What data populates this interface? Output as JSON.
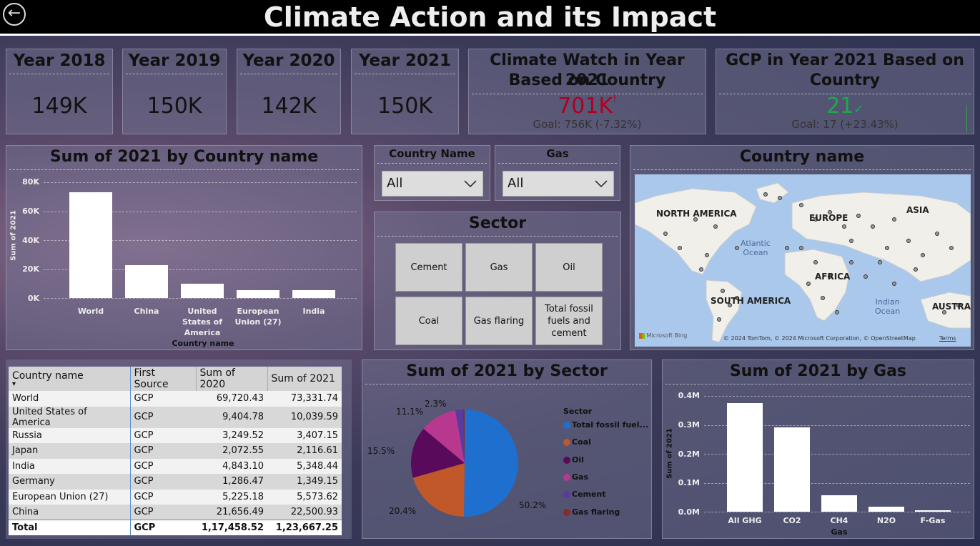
{
  "header": {
    "title": "Climate Action and its Impact",
    "back_icon": "arrow-left-icon"
  },
  "kpis": [
    {
      "label": "Year 2018",
      "value": "149K"
    },
    {
      "label": "Year 2019",
      "value": "150K"
    },
    {
      "label": "Year 2020",
      "value": "142K"
    },
    {
      "label": "Year 2021",
      "value": "150K"
    }
  ],
  "climate_watch": {
    "title_line1": "Climate Watch in Year 2021",
    "title_line2": "Based on Country",
    "value": "701K",
    "value_color": "#b00020",
    "status_icon": "!",
    "goal": "Goal: 756K (-7.32%)"
  },
  "gcp": {
    "title_line1": "GCP in Year 2021 Based on",
    "title_line2": "Country",
    "value": "21",
    "value_color": "#1fa84a",
    "status_icon": "✓",
    "goal": "Goal: 17 (+23.43%)"
  },
  "country_chart": {
    "title": "Sum of 2021 by Country name",
    "ylabel": "Sum of 2021",
    "xlabel": "Country name",
    "yticks": [
      "80K",
      "60K",
      "40K",
      "20K",
      "0K"
    ],
    "categories": [
      {
        "line1": "World"
      },
      {
        "line1": "China"
      },
      {
        "line1": "United",
        "line2": "States of",
        "line3": "America"
      },
      {
        "line1": "European",
        "line2": "Union (27)"
      },
      {
        "line1": "India"
      }
    ]
  },
  "slicers": {
    "country": {
      "label": "Country Name",
      "value": "All"
    },
    "gas": {
      "label": "Gas",
      "value": "All"
    }
  },
  "sector_slicer": {
    "title": "Sector",
    "buttons": [
      {
        "line1": "Cement"
      },
      {
        "line1": "Gas"
      },
      {
        "line1": "Oil"
      },
      {
        "line1": "Coal"
      },
      {
        "line1": "Gas flaring"
      },
      {
        "line1": "Total fossil",
        "line2": "fuels and",
        "line3": "cement"
      }
    ]
  },
  "map": {
    "title": "Country name",
    "labels": {
      "north_america": "NORTH AMERICA",
      "europe": "EUROPE",
      "asia": "ASIA",
      "atlantic1": "Atlantic",
      "atlantic2": "Ocean",
      "africa": "AFRICA",
      "south_america": "SOUTH AMERICA",
      "indian1": "Indian",
      "indian2": "Ocean",
      "australia": "AUSTRAL"
    },
    "bing": "Microsoft Bing",
    "copyright": "© 2024 TomTom, © 2024 Microsoft Corporation, © OpenStreetMap",
    "terms": "Terms"
  },
  "table": {
    "headers": [
      "Country name",
      "First Source",
      "Sum of 2020",
      "Sum of 2021"
    ],
    "sort_icon": "▾",
    "rows": [
      [
        "World",
        "GCP",
        "69,720.43",
        "73,331.74"
      ],
      [
        "United States of America",
        "GCP",
        "9,404.78",
        "10,039.59"
      ],
      [
        "Russia",
        "GCP",
        "3,249.52",
        "3,407.15"
      ],
      [
        "Japan",
        "GCP",
        "2,072.55",
        "2,116.61"
      ],
      [
        "India",
        "GCP",
        "4,843.10",
        "5,348.44"
      ],
      [
        "Germany",
        "GCP",
        "1,286.47",
        "1,349.15"
      ],
      [
        "European Union (27)",
        "GCP",
        "5,225.18",
        "5,573.62"
      ],
      [
        "China",
        "GCP",
        "21,656.49",
        "22,500.93"
      ]
    ],
    "total": [
      "Total",
      "GCP",
      "1,17,458.52",
      "1,23,667.25"
    ]
  },
  "pie": {
    "title": "Sum of 2021 by Sector",
    "legend_title": "Sector",
    "slice_labels": {
      "s1": "50.2%",
      "s2": "20.4%",
      "s3": "15.5%",
      "s4": "11.1%",
      "s5": "2.3%"
    }
  },
  "gas_chart": {
    "title": "Sum of 2021 by Gas",
    "ylabel": "Sum of 2021",
    "xlabel": "Gas",
    "yticks": [
      "0.4M",
      "0.3M",
      "0.2M",
      "0.1M",
      "0.0M"
    ]
  },
  "chart_data": [
    {
      "type": "bar",
      "title": "Sum of 2021 by Country name",
      "xlabel": "Country name",
      "ylabel": "Sum of 2021",
      "categories": [
        "World",
        "China",
        "United States of America",
        "European Union (27)",
        "India"
      ],
      "values": [
        73331.74,
        22500.93,
        10039.59,
        5573.62,
        5348.44
      ],
      "ylim": [
        0,
        80000
      ],
      "grid": true
    },
    {
      "type": "pie",
      "title": "Sum of 2021 by Sector",
      "legend": "right",
      "categories": [
        "Total fossil fuel...",
        "Coal",
        "Oil",
        "Gas",
        "Cement",
        "Gas flaring"
      ],
      "values": [
        50.2,
        20.4,
        15.5,
        11.1,
        2.3,
        0.5
      ],
      "colors": [
        "#1f6fce",
        "#c0582a",
        "#5a0a5a",
        "#b8378f",
        "#5a3a9e",
        "#8a2a2a"
      ]
    },
    {
      "type": "bar",
      "title": "Sum of 2021 by Gas",
      "xlabel": "Gas",
      "ylabel": "Sum of 2021",
      "categories": [
        "All GHG",
        "CO2",
        "CH4",
        "N2O",
        "F-Gas"
      ],
      "values": [
        375000,
        292000,
        57000,
        17000,
        6000
      ],
      "ylim": [
        0,
        400000
      ],
      "grid": true
    }
  ]
}
